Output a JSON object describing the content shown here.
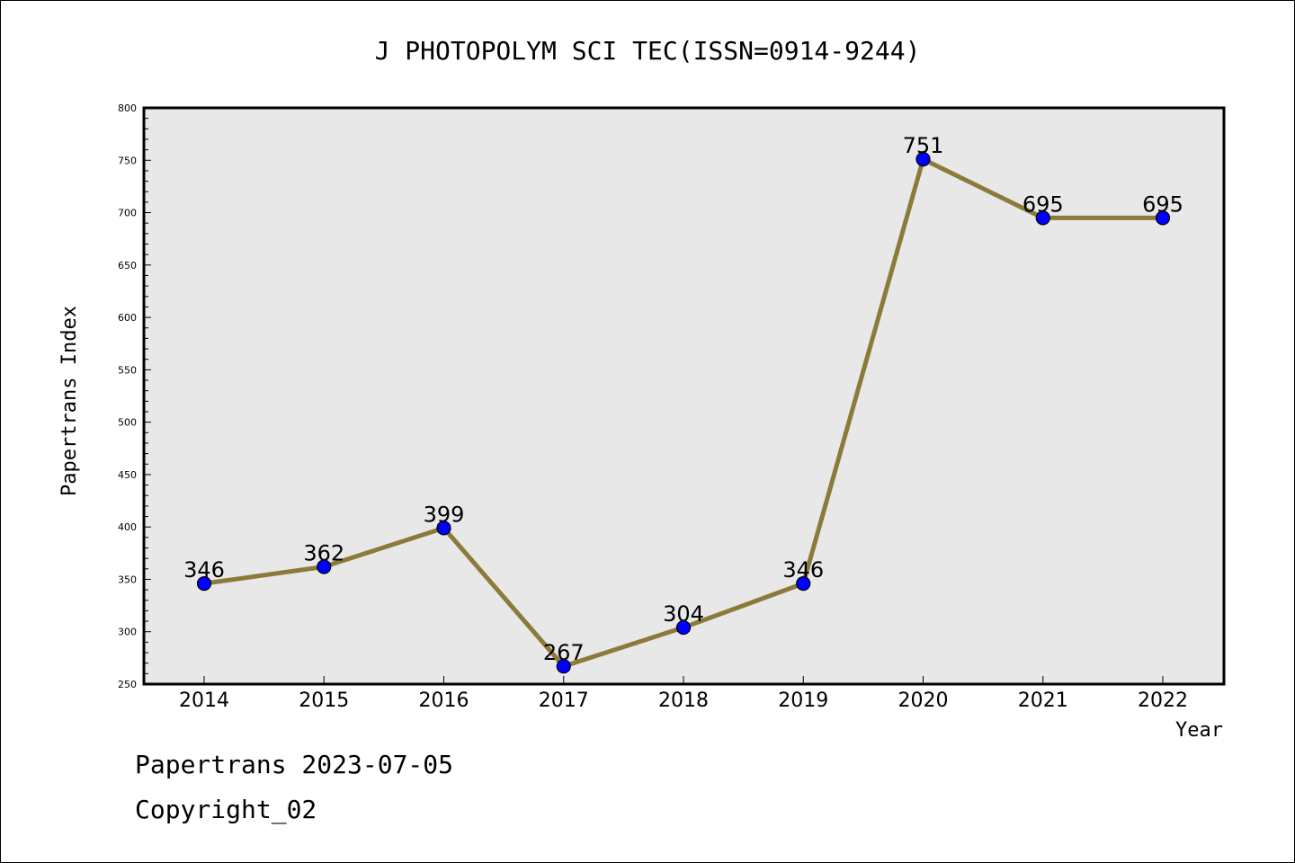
{
  "chart_data": {
    "type": "line",
    "title": "J PHOTOPOLYM SCI TEC(ISSN=0914-9244)",
    "xlabel": "Year",
    "ylabel": "Papertrans Index",
    "categories": [
      "2014",
      "2015",
      "2016",
      "2017",
      "2018",
      "2019",
      "2020",
      "2021",
      "2022"
    ],
    "series": [
      {
        "values": [
          346,
          362,
          399,
          267,
          304,
          346,
          751,
          695,
          695
        ]
      }
    ],
    "data_labels": [
      "346",
      "362",
      "399",
      "267",
      "304",
      "346",
      "751",
      "695",
      "695"
    ],
    "ylim": [
      250,
      800
    ],
    "yticks": [
      250,
      300,
      350,
      400,
      450,
      500,
      550,
      600,
      650,
      700,
      750,
      800
    ],
    "ytick_labels": [
      "250",
      "300",
      "350",
      "400",
      "450",
      "500",
      "550",
      "600",
      "650",
      "700",
      "750",
      "800"
    ],
    "grid": false,
    "colors": {
      "line": "#8b7b3a",
      "marker": "#0000ff",
      "plot_background": "#e8e8e8"
    }
  },
  "footer": {
    "line1": "Papertrans 2023-07-05",
    "line2": "Copyright_02"
  }
}
